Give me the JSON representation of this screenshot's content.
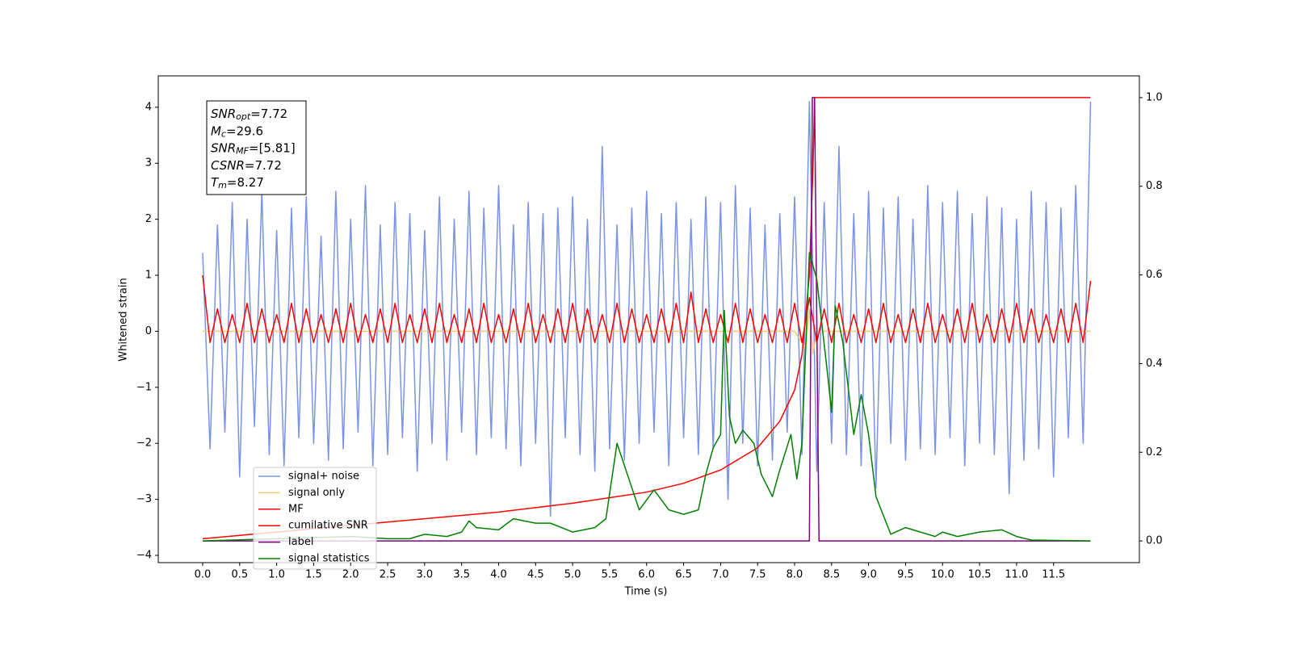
{
  "chart_data": {
    "type": "line",
    "xlabel": "Time (s)",
    "ylabel": "Whitened strain",
    "xlim": [
      -0.6,
      12.66
    ],
    "ylim": [
      -4.13,
      4.56
    ],
    "y2lim": [
      -0.049,
      1.049
    ],
    "xticks": [
      {
        "value": 0,
        "label": "0.0"
      },
      0.5,
      {
        "value": 1,
        "label": "1.0"
      },
      1.5,
      {
        "value": 2,
        "label": "2.0"
      },
      2.5,
      {
        "value": 3,
        "label": "3.0"
      },
      3.5,
      {
        "value": 4,
        "label": "4.0"
      },
      4.5,
      {
        "value": 5,
        "label": "5.0"
      },
      5.5,
      {
        "value": 6,
        "label": "6.0"
      },
      6.5,
      {
        "value": 7,
        "label": "7.0"
      },
      7.5,
      {
        "value": 8,
        "label": "8.0"
      },
      8.5,
      {
        "value": 9,
        "label": "9.0"
      },
      9.5,
      {
        "value": 10,
        "label": "10.0"
      },
      10.5,
      {
        "value": 11,
        "label": "11.0"
      },
      11.5
    ],
    "yticks": [
      {
        "value": -4,
        "label": "−4"
      },
      {
        "value": -3,
        "label": "−3"
      },
      {
        "value": -2,
        "label": "−2"
      },
      {
        "value": -1,
        "label": "−1"
      },
      0,
      1,
      2,
      3,
      4
    ],
    "y2ticks": [
      {
        "value": 0,
        "label": "0.0"
      },
      0.2,
      0.4,
      0.6,
      0.8,
      {
        "value": 1,
        "label": "1.0"
      }
    ],
    "legend": "lower left",
    "annotation": [
      {
        "main": "SNR",
        "sub": "opt",
        "text": "=7.72"
      },
      {
        "main": "M",
        "sub": "c",
        "text": "=29.6"
      },
      {
        "main": "SNR",
        "sub": "MF",
        "text": "=[5.81]"
      },
      {
        "main": "CSNR",
        "text": "=7.72"
      },
      {
        "main": "T",
        "sub": "m",
        "text": "=8.27"
      }
    ],
    "x": [
      0,
      0.1,
      0.2,
      0.3,
      0.4,
      0.5,
      0.6,
      0.7,
      0.8,
      0.9,
      1,
      1.1,
      1.2,
      1.3,
      1.4,
      1.5,
      1.6,
      1.7,
      1.8,
      1.9,
      2,
      2.1,
      2.2,
      2.3,
      2.4,
      2.5,
      2.6,
      2.7,
      2.8,
      2.9,
      3,
      3.1,
      3.2,
      3.3,
      3.4,
      3.5,
      3.6,
      3.7,
      3.8,
      3.9,
      4,
      4.1,
      4.2,
      4.3,
      4.4,
      4.5,
      4.6,
      4.7,
      4.8,
      4.9,
      5,
      5.1,
      5.2,
      5.3,
      5.4,
      5.5,
      5.6,
      5.7,
      5.8,
      5.9,
      6,
      6.1,
      6.2,
      6.3,
      6.4,
      6.5,
      6.6,
      6.7,
      6.8,
      6.9,
      7,
      7.1,
      7.2,
      7.3,
      7.4,
      7.5,
      7.6,
      7.7,
      7.8,
      7.9,
      8,
      8.1,
      8.2,
      8.3,
      8.4,
      8.5,
      8.6,
      8.7,
      8.8,
      8.9,
      9,
      9.1,
      9.2,
      9.3,
      9.4,
      9.5,
      9.6,
      9.7,
      9.8,
      9.9,
      10,
      10.1,
      10.2,
      10.3,
      10.4,
      10.5,
      10.6,
      10.7,
      10.8,
      10.9,
      11,
      11.1,
      11.2,
      11.3,
      11.4,
      11.5,
      11.6,
      11.7,
      11.8,
      11.9,
      12
    ],
    "series": [
      {
        "name": "signal+ noise",
        "color": "#7a93e6",
        "axis": "y",
        "values": [
          1.4,
          -2.1,
          1.9,
          -1.8,
          2.3,
          -2.6,
          2.0,
          -1.7,
          2.5,
          -2.2,
          1.8,
          -2.4,
          2.2,
          -1.9,
          2.4,
          -2.0,
          1.7,
          -2.3,
          2.5,
          -2.1,
          2.0,
          -1.8,
          2.6,
          -2.4,
          1.9,
          -2.2,
          2.3,
          -1.9,
          2.1,
          -2.5,
          1.8,
          -2.0,
          2.4,
          -2.3,
          2.0,
          -1.8,
          2.5,
          -2.2,
          2.2,
          -1.9,
          2.6,
          -2.1,
          1.9,
          -2.4,
          2.3,
          -2.0,
          2.1,
          -3.3,
          2.2,
          -1.9,
          2.4,
          -2.2,
          2.0,
          -2.5,
          3.3,
          -2.1,
          1.9,
          -2.3,
          2.2,
          -2.0,
          2.5,
          -1.8,
          2.1,
          -2.4,
          2.3,
          -1.9,
          2.0,
          -2.2,
          2.4,
          -2.1,
          2.3,
          -3.0,
          2.6,
          -2.0,
          2.2,
          -2.4,
          1.9,
          -2.3,
          2.1,
          -1.8,
          2.4,
          -2.2,
          4.1,
          -2.5,
          2.3,
          -2.0,
          3.3,
          -2.2,
          2.1,
          -2.4,
          2.5,
          -2.8,
          2.2,
          -2.0,
          2.4,
          -2.3,
          2.0,
          -2.1,
          2.6,
          -2.2,
          2.3,
          -1.9,
          2.5,
          -2.4,
          2.1,
          -2.0,
          2.4,
          -2.2,
          2.2,
          -2.9,
          2.0,
          -2.3,
          2.5,
          -2.1,
          2.3,
          -2.6,
          2.2,
          -1.9,
          2.6,
          -2.0,
          4.1
        ]
      },
      {
        "name": "signal only",
        "color": "#f5c97a",
        "axis": "y",
        "x": [
          0,
          8.0,
          8.15,
          8.2,
          8.25,
          8.3,
          12
        ],
        "values": [
          0,
          0,
          -0.3,
          0.4,
          -0.4,
          0,
          0
        ]
      },
      {
        "name": "MF",
        "color": "#ff0000",
        "axis": "y",
        "values": [
          1.0,
          -0.2,
          0.4,
          -0.2,
          0.3,
          -0.2,
          0.5,
          -0.2,
          0.4,
          -0.2,
          0.3,
          -0.2,
          0.5,
          -0.2,
          0.4,
          -0.2,
          0.3,
          -0.2,
          0.4,
          -0.2,
          0.5,
          -0.2,
          0.3,
          -0.2,
          0.4,
          -0.2,
          0.5,
          -0.2,
          0.3,
          -0.2,
          0.4,
          -0.2,
          0.5,
          -0.2,
          0.3,
          -0.2,
          0.4,
          -0.2,
          0.5,
          -0.2,
          0.3,
          -0.2,
          0.4,
          -0.2,
          0.5,
          -0.2,
          0.3,
          -0.2,
          0.4,
          -0.2,
          0.5,
          -0.2,
          0.4,
          -0.2,
          0.3,
          -0.2,
          0.5,
          -0.2,
          0.4,
          -0.2,
          0.3,
          -0.2,
          0.4,
          -0.2,
          0.5,
          -0.2,
          0.7,
          -0.2,
          0.4,
          -0.2,
          0.3,
          -0.2,
          0.5,
          -0.2,
          0.4,
          -0.2,
          0.3,
          -0.2,
          0.4,
          -0.2,
          0.5,
          -0.2,
          0.6,
          -0.2,
          0.4,
          -0.2,
          0.5,
          -0.2,
          0.3,
          -0.2,
          0.4,
          -0.2,
          0.5,
          -0.2,
          0.3,
          -0.2,
          0.4,
          -0.2,
          0.5,
          -0.2,
          0.3,
          -0.2,
          0.4,
          -0.2,
          0.5,
          -0.2,
          0.3,
          -0.2,
          0.4,
          -0.2,
          0.5,
          -0.2,
          0.4,
          -0.2,
          0.3,
          -0.2,
          0.4,
          -0.2,
          0.5,
          -0.2,
          0.9
        ]
      },
      {
        "name": "cumilative SNR",
        "color": "#ff0000",
        "axis": "y2",
        "x": [
          0,
          1,
          2,
          3,
          4,
          5,
          6,
          6.5,
          7,
          7.5,
          7.8,
          8.0,
          8.1,
          8.2,
          8.25,
          8.27,
          12
        ],
        "values": [
          0.005,
          0.02,
          0.035,
          0.05,
          0.065,
          0.085,
          0.11,
          0.13,
          0.16,
          0.21,
          0.27,
          0.34,
          0.42,
          0.6,
          0.85,
          1.0,
          1.0
        ]
      },
      {
        "name": "label",
        "color": "#800080",
        "axis": "y2",
        "x": [
          0,
          8.2,
          8.24,
          8.27,
          8.33,
          12
        ],
        "values": [
          0,
          0,
          1.0,
          1.0,
          0,
          0
        ]
      },
      {
        "name": "signal statistics",
        "color": "#008000",
        "axis": "y2",
        "x": [
          0,
          1,
          2,
          2.5,
          2.8,
          3.0,
          3.3,
          3.5,
          3.6,
          3.7,
          4.0,
          4.2,
          4.5,
          4.7,
          5.0,
          5.3,
          5.45,
          5.6,
          5.8,
          5.9,
          6.1,
          6.3,
          6.5,
          6.7,
          6.8,
          6.9,
          7.0,
          7.05,
          7.12,
          7.2,
          7.3,
          7.45,
          7.55,
          7.7,
          7.8,
          7.95,
          8.03,
          8.1,
          8.2,
          8.3,
          8.45,
          8.5,
          8.55,
          8.65,
          8.8,
          8.9,
          9.0,
          9.1,
          9.3,
          9.5,
          9.7,
          9.9,
          10.0,
          10.2,
          10.5,
          10.8,
          11.0,
          11.2,
          12.0
        ],
        "values": [
          0,
          0.005,
          0.01,
          0.005,
          0.005,
          0.015,
          0.01,
          0.02,
          0.045,
          0.03,
          0.025,
          0.05,
          0.04,
          0.04,
          0.02,
          0.03,
          0.05,
          0.22,
          0.12,
          0.07,
          0.115,
          0.07,
          0.06,
          0.07,
          0.15,
          0.21,
          0.24,
          0.52,
          0.28,
          0.22,
          0.25,
          0.22,
          0.15,
          0.1,
          0.16,
          0.24,
          0.14,
          0.22,
          0.65,
          0.59,
          0.37,
          0.29,
          0.53,
          0.45,
          0.24,
          0.33,
          0.24,
          0.1,
          0.015,
          0.03,
          0.02,
          0.01,
          0.02,
          0.01,
          0.02,
          0.025,
          0.01,
          0.002,
          0
        ]
      }
    ]
  }
}
